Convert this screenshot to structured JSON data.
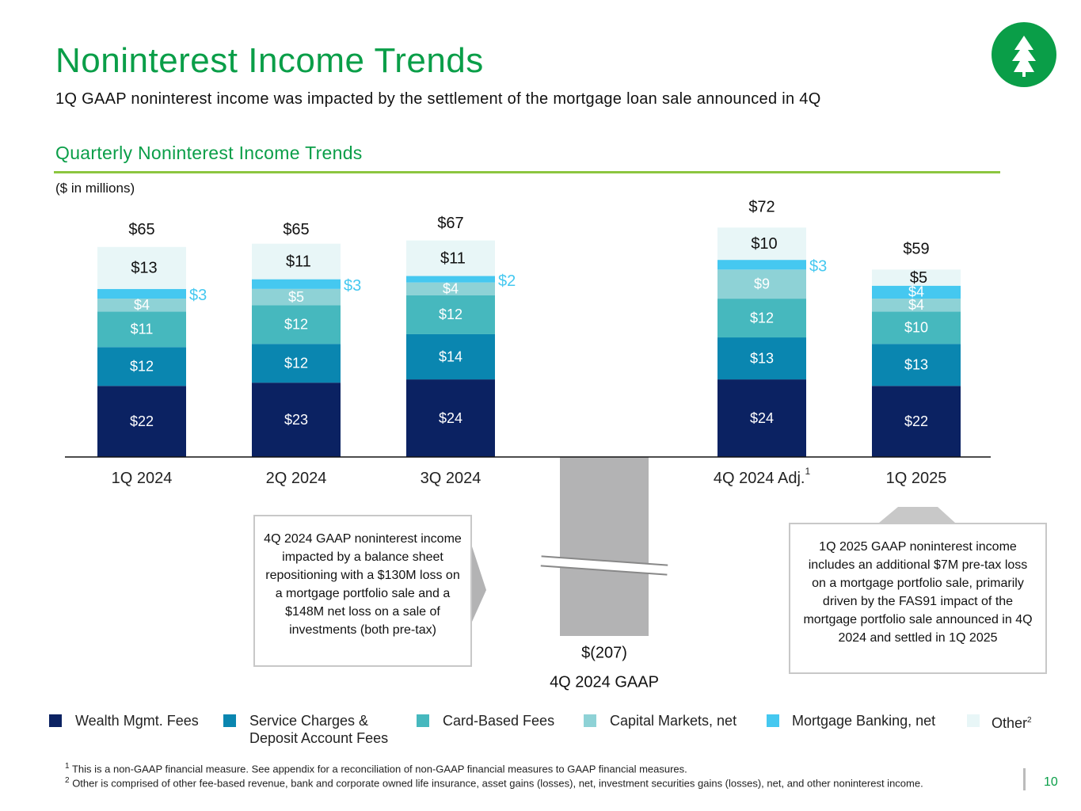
{
  "header": {
    "title": "Noninterest Income Trends",
    "subtitle": "1Q GAAP noninterest income was impacted by the settlement of the mortgage loan sale announced in 4Q",
    "section": "Quarterly Noninterest Income Trends",
    "units": "($ in millions)"
  },
  "chart_data": {
    "type": "stacked_bar",
    "categories": [
      "1Q 2024",
      "2Q 2024",
      "3Q 2024",
      "4Q 2024 GAAP",
      "4Q 2024 Adj.",
      "1Q 2025"
    ],
    "category_marks": [
      null,
      null,
      null,
      null,
      "1",
      null
    ],
    "ylim": [
      0,
      75
    ],
    "series": [
      {
        "name": "Wealth Mgmt. Fees",
        "color": "#0b2262",
        "values": [
          22,
          23,
          24,
          null,
          24,
          22
        ],
        "value_labels": [
          "$22",
          "$23",
          "$24",
          null,
          "$24",
          "$22"
        ]
      },
      {
        "name": "Service Charges & Deposit Account Fees",
        "color": "#0a86b0",
        "values": [
          12,
          12,
          14,
          null,
          13,
          13
        ],
        "value_labels": [
          "$12",
          "$12",
          "$14",
          null,
          "$13",
          "$13"
        ]
      },
      {
        "name": "Card-Based Fees",
        "color": "#46b8be",
        "values": [
          11,
          12,
          12,
          null,
          12,
          10
        ],
        "value_labels": [
          "$11",
          "$12",
          "$12",
          null,
          "$12",
          "$10"
        ]
      },
      {
        "name": "Capital Markets, net",
        "color": "#8ed2d6",
        "values": [
          4,
          5,
          4,
          null,
          9,
          4
        ],
        "value_labels": [
          "$4",
          "$5",
          "$4",
          null,
          "$9",
          "$4"
        ]
      },
      {
        "name": "Mortgage Banking, net",
        "color": "#45c8f0",
        "values": [
          3,
          3,
          2,
          null,
          3,
          4
        ],
        "value_labels": [
          "$3",
          "$3",
          "$2",
          null,
          "$3",
          "$4"
        ]
      },
      {
        "name": "Other",
        "name_mark": "2",
        "color": "#e8f6f7",
        "values": [
          13,
          11,
          11,
          null,
          10,
          5
        ],
        "value_labels": [
          "$13",
          "$11",
          "$11",
          null,
          "$10",
          "$5"
        ]
      }
    ],
    "totals": {
      "color": "#b3b3b4",
      "values": [
        65,
        65,
        67,
        -207,
        72,
        59
      ],
      "value_labels": [
        "$65",
        "$65",
        "$67",
        "$(207)",
        "$72",
        "$59"
      ]
    }
  },
  "callouts": [
    "4Q 2024 GAAP noninterest income impacted by a balance sheet repositioning with a $130M loss on a mortgage portfolio sale and a $148M net loss on a sale of investments (both pre-tax)",
    "1Q 2025 GAAP noninterest income includes an additional $7M pre-tax loss on a mortgage portfolio sale, primarily driven by the FAS91 impact of the mortgage portfolio sale announced in 4Q 2024 and settled in 1Q 2025"
  ],
  "footnotes": [
    {
      "mark": "1",
      "text": "This is a non-GAAP financial measure. See appendix for a reconciliation of non-GAAP financial measures to GAAP financial measures."
    },
    {
      "mark": "2",
      "text": "Other is comprised of other fee-based revenue, bank and corporate owned life insurance, asset gains (losses), net, investment securities gains (losses), net, and other noninterest income."
    }
  ],
  "page_number": "10"
}
